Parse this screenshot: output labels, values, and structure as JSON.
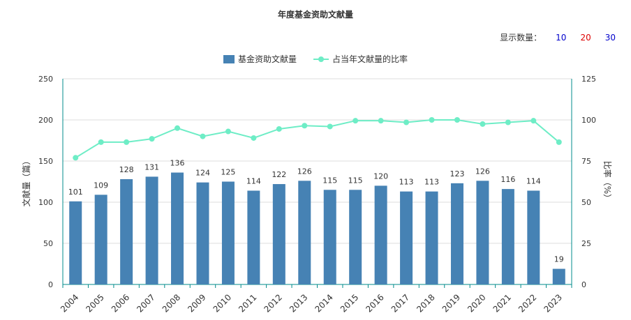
{
  "title": "年度基金资助文献量",
  "count_selector": {
    "label": "显示数量：",
    "options": [
      {
        "label": "10",
        "color": "#0000cc"
      },
      {
        "label": "20",
        "color": "#dd0000"
      },
      {
        "label": "30",
        "color": "#0000cc"
      }
    ]
  },
  "colors": {
    "bar": "#4682b4",
    "line": "#6eedc6",
    "axis": "#008b8b",
    "grid": "#dddddd",
    "text": "#333333"
  },
  "chart_data": {
    "type": "bar",
    "categories": [
      "2004",
      "2005",
      "2006",
      "2007",
      "2008",
      "2009",
      "2010",
      "2011",
      "2012",
      "2013",
      "2014",
      "2015",
      "2016",
      "2017",
      "2018",
      "2019",
      "2020",
      "2021",
      "2022",
      "2023"
    ],
    "series": [
      {
        "name": "基金资助文献量",
        "type": "bar",
        "axis": "left",
        "values": [
          101,
          109,
          128,
          131,
          136,
          124,
          125,
          114,
          122,
          126,
          115,
          115,
          120,
          113,
          113,
          123,
          126,
          116,
          114,
          19
        ]
      },
      {
        "name": "占当年文献量的比率",
        "type": "line",
        "axis": "right",
        "values": [
          77,
          86.5,
          86.5,
          88.5,
          95,
          90,
          93,
          89,
          94.5,
          96.5,
          96,
          99.5,
          99.5,
          98.5,
          100,
          100,
          97.5,
          98.5,
          99.5,
          86.5
        ]
      }
    ],
    "ylabel": "文献量（篇）",
    "y2label": "比率（%）",
    "ylim": [
      0,
      250
    ],
    "y2lim": [
      0,
      125
    ],
    "yticks": [
      0,
      50,
      100,
      150,
      200,
      250
    ],
    "y2ticks": [
      0,
      25,
      50,
      75,
      100,
      125
    ],
    "grid": true,
    "legend_position": "top-center"
  }
}
